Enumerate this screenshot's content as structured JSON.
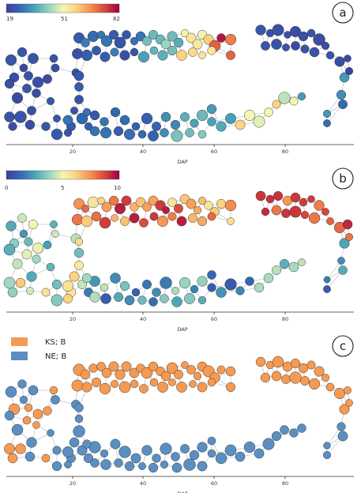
{
  "figure": {
    "panels": [
      {
        "letter": "a",
        "colorbar": {
          "palette": "spectral_r",
          "ticks": [
            "19",
            "51",
            "82"
          ],
          "range": [
            19,
            82
          ]
        },
        "coloring": "age"
      },
      {
        "letter": "b",
        "colorbar": {
          "palette": "spectral_r",
          "ticks": [
            "0",
            "5",
            "10"
          ],
          "range": [
            0,
            10
          ]
        },
        "coloring": "score"
      },
      {
        "letter": "c",
        "legend": [
          {
            "label": "KS; B",
            "color": "#f59a52"
          },
          {
            "label": "NE; B",
            "color": "#5b8fc2"
          }
        ],
        "coloring": "group"
      }
    ],
    "axis": {
      "title": "DAP",
      "tick_labels": [
        "20",
        "40",
        "60",
        "80"
      ],
      "range": [
        0,
        97
      ]
    }
  },
  "chart_data": {
    "type": "network",
    "colorbars": [
      {
        "panel": "a",
        "min": 19,
        "mid": 51,
        "max": 82
      },
      {
        "panel": "b",
        "min": 0,
        "mid": 5,
        "max": 10
      }
    ],
    "xaxis": {
      "label": "DAP",
      "ticks": [
        20,
        40,
        60,
        80
      ]
    },
    "legend": [
      {
        "label": "KS; B",
        "color": "#f59a52"
      },
      {
        "label": "NE; B",
        "color": "#5b8fc2"
      }
    ]
  }
}
